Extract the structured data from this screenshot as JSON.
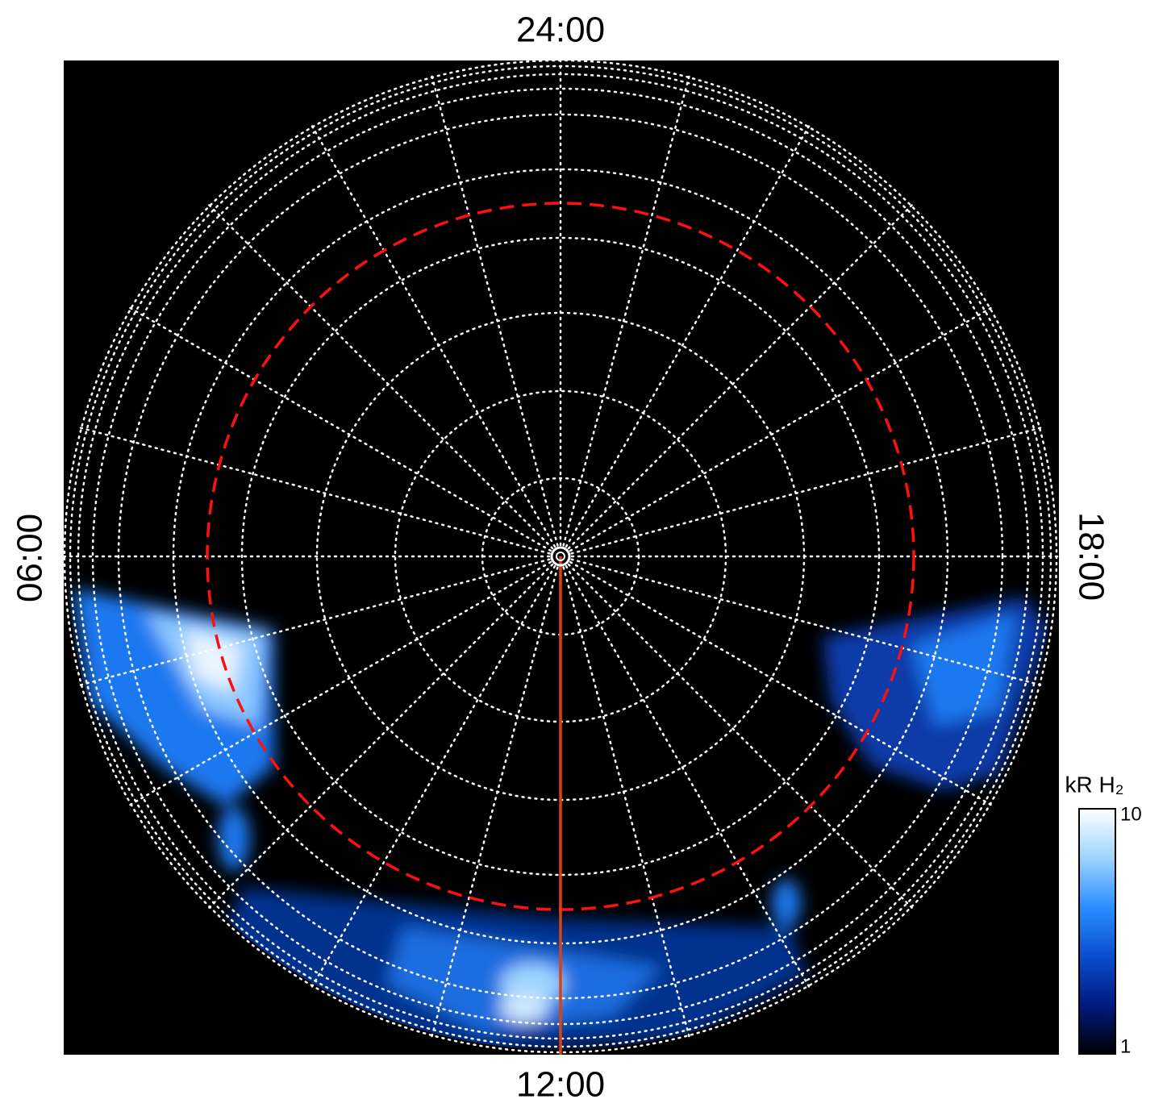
{
  "chart_data": {
    "type": "polar-image",
    "angle_labels": {
      "top": "24:00",
      "left": "06:00",
      "right": "18:00",
      "bottom": "12:00"
    },
    "colorbar": {
      "label": "kR H₂",
      "lim": [
        1,
        10
      ],
      "ticks": [
        1,
        10
      ],
      "log": true,
      "colors": [
        "#000000",
        "#001a80",
        "#0a4fd0",
        "#2a8fff",
        "#9fd4ff",
        "#ffffff"
      ]
    }
  }
}
